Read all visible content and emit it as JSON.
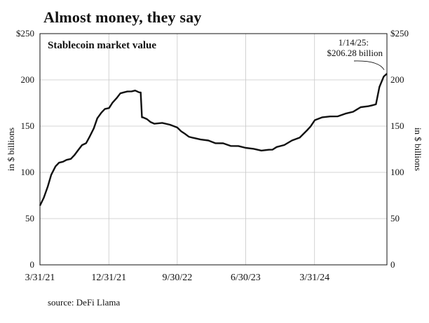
{
  "chart_data": {
    "type": "line",
    "title": "Almost money, they say",
    "subtitle": "Stablecoin market value",
    "ylabel": "in $ billions",
    "ylim": [
      0,
      250
    ],
    "xlim": [
      "2021-03-31",
      "2025-01-14"
    ],
    "y_ticks": [
      {
        "value": 0,
        "label": "0"
      },
      {
        "value": 50,
        "label": "50"
      },
      {
        "value": 100,
        "label": "100"
      },
      {
        "value": 150,
        "label": "150"
      },
      {
        "value": 200,
        "label": "200"
      },
      {
        "value": 250,
        "label": "$250"
      }
    ],
    "x_ticks": [
      {
        "date": "2021-03-31",
        "label": "3/31/21"
      },
      {
        "date": "2021-12-31",
        "label": "12/31/21"
      },
      {
        "date": "2022-09-30",
        "label": "9/30/22"
      },
      {
        "date": "2023-06-30",
        "label": "6/30/23"
      },
      {
        "date": "2024-03-31",
        "label": "3/31/24"
      }
    ],
    "grid": true,
    "series": [
      {
        "x": [
          "2021-03-31",
          "2021-04-15",
          "2021-05-01",
          "2021-05-15",
          "2021-06-01",
          "2021-06-15",
          "2021-07-01",
          "2021-07-15",
          "2021-08-01",
          "2021-08-15",
          "2021-09-01",
          "2021-09-15",
          "2021-10-01",
          "2021-10-15",
          "2021-11-01",
          "2021-11-15",
          "2021-12-01",
          "2021-12-15",
          "2022-01-01",
          "2022-01-15",
          "2022-02-01",
          "2022-02-15",
          "2022-03-01",
          "2022-03-15",
          "2022-04-01",
          "2022-04-15",
          "2022-05-01",
          "2022-05-07",
          "2022-05-12",
          "2022-05-16",
          "2022-06-01",
          "2022-06-15",
          "2022-07-01",
          "2022-08-01",
          "2022-09-01",
          "2022-09-30",
          "2022-10-15",
          "2022-11-01",
          "2022-11-15",
          "2022-12-01",
          "2023-01-01",
          "2023-02-01",
          "2023-03-01",
          "2023-04-01",
          "2023-05-01",
          "2023-06-01",
          "2023-06-30",
          "2023-08-01",
          "2023-09-01",
          "2023-10-01",
          "2023-10-15",
          "2023-11-01",
          "2023-12-01",
          "2024-01-01",
          "2024-02-01",
          "2024-03-01",
          "2024-03-15",
          "2024-04-01",
          "2024-05-01",
          "2024-06-01",
          "2024-07-01",
          "2024-08-01",
          "2024-09-01",
          "2024-10-01",
          "2024-11-01",
          "2024-11-15",
          "2024-12-01",
          "2024-12-15",
          "2025-01-01",
          "2025-01-14"
        ],
        "y": [
          64,
          72,
          85,
          97,
          107,
          110,
          112,
          113,
          115,
          118,
          125,
          129,
          132,
          138,
          148,
          158,
          165,
          168,
          170,
          175,
          181,
          185,
          187,
          187,
          188,
          188,
          187,
          186,
          160,
          159,
          158,
          154,
          153,
          153,
          152,
          148,
          145,
          141,
          139,
          137,
          136,
          134,
          132,
          131,
          129,
          128,
          127,
          125,
          124,
          124,
          125,
          127,
          130,
          134,
          138,
          145,
          150,
          156,
          160,
          160,
          161,
          163,
          166,
          170,
          172,
          172,
          174,
          192,
          204,
          206.28
        ]
      }
    ],
    "annotations": [
      {
        "line1": "1/14/25:",
        "line2": "$206.28 billion"
      }
    ]
  },
  "source": "source: DeFi Llama"
}
